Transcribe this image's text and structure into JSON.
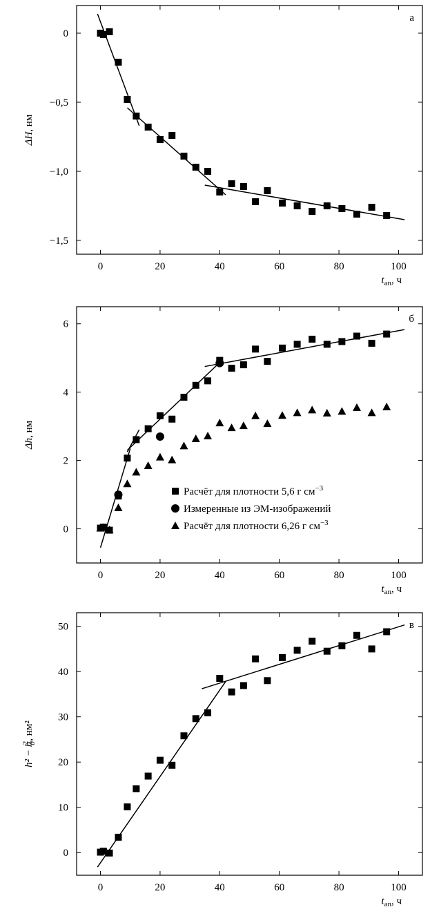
{
  "chart_data": [
    {
      "type": "scatter",
      "panel_letter": "а",
      "ylabel_symbol": "ΔH",
      "ylabel_unit": ", нм",
      "xlabel_symbol": "t",
      "xlabel_sub": "an",
      "xlabel_unit": ", ч",
      "xlim": [
        -8,
        108
      ],
      "ylim": [
        -1.6,
        0.2
      ],
      "xticks": [
        0,
        20,
        40,
        60,
        80,
        100
      ],
      "xtick_labels": [
        "0",
        "20",
        "40",
        "60",
        "80",
        "100"
      ],
      "yticks": [
        0,
        -0.5,
        -1.0,
        -1.5
      ],
      "ytick_labels": [
        "0",
        "−0,5",
        "−1,0",
        "−1,5"
      ],
      "series": [
        {
          "marker": "square",
          "x": [
            0,
            1,
            3,
            6,
            9,
            12,
            16,
            20,
            24,
            28,
            32,
            36,
            40,
            44,
            48,
            52,
            56,
            61,
            66,
            71,
            76,
            81,
            86,
            91,
            96
          ],
          "y": [
            0,
            -0.01,
            0.01,
            -0.21,
            -0.48,
            -0.6,
            -0.68,
            -0.77,
            -0.74,
            -0.89,
            -0.97,
            -1.0,
            -1.15,
            -1.09,
            -1.11,
            -1.22,
            -1.14,
            -1.23,
            -1.25,
            -1.29,
            -1.25,
            -1.27,
            -1.31,
            -1.26,
            -1.32
          ]
        }
      ],
      "fit_lines": [
        {
          "x": [
            -1,
            13
          ],
          "y": [
            0.14,
            -0.67
          ]
        },
        {
          "x": [
            9,
            42
          ],
          "y": [
            -0.54,
            -1.17
          ]
        },
        {
          "x": [
            35,
            102
          ],
          "y": [
            -1.1,
            -1.35
          ]
        }
      ]
    },
    {
      "type": "scatter",
      "panel_letter": "б",
      "ylabel_symbol": "Δh",
      "ylabel_unit": ", нм",
      "xlabel_symbol": "t",
      "xlabel_sub": "an",
      "xlabel_unit": ", ч",
      "xlim": [
        -8,
        108
      ],
      "ylim": [
        -1.0,
        6.5
      ],
      "xticks": [
        0,
        20,
        40,
        60,
        80,
        100
      ],
      "xtick_labels": [
        "0",
        "20",
        "40",
        "60",
        "80",
        "100"
      ],
      "yticks": [
        0,
        2,
        4,
        6
      ],
      "ytick_labels": [
        "0",
        "2",
        "4",
        "6"
      ],
      "series": [
        {
          "name": "Расчёт для плотности 5,6 г см",
          "name_sup": "−3",
          "marker": "square",
          "x": [
            0,
            1,
            3,
            6,
            9,
            12,
            16,
            20,
            24,
            28,
            32,
            36,
            40,
            44,
            48,
            52,
            56,
            61,
            66,
            71,
            76,
            81,
            86,
            91,
            96
          ],
          "y": [
            0.02,
            0.05,
            -0.04,
            0.96,
            2.07,
            2.61,
            2.93,
            3.31,
            3.21,
            3.85,
            4.2,
            4.33,
            4.93,
            4.7,
            4.8,
            5.26,
            4.9,
            5.29,
            5.4,
            5.55,
            5.4,
            5.48,
            5.64,
            5.43,
            5.7
          ]
        },
        {
          "name": "Измеренные из ЭМ-изображений",
          "marker": "circle",
          "x": [
            6,
            20,
            40
          ],
          "y": [
            1.0,
            2.7,
            4.85
          ]
        },
        {
          "name": "Расчёт для плотности 6,26 г см",
          "name_sup": "−3",
          "marker": "triangle",
          "x": [
            0,
            1,
            3,
            6,
            9,
            12,
            16,
            20,
            24,
            28,
            32,
            36,
            40,
            44,
            48,
            52,
            56,
            61,
            66,
            71,
            76,
            81,
            86,
            91,
            96
          ],
          "y": [
            0.02,
            0.04,
            -0.03,
            0.62,
            1.32,
            1.66,
            1.85,
            2.1,
            2.02,
            2.43,
            2.64,
            2.72,
            3.1,
            2.96,
            3.02,
            3.31,
            3.08,
            3.32,
            3.4,
            3.48,
            3.39,
            3.44,
            3.55,
            3.4,
            3.57
          ]
        }
      ],
      "fit_lines": [
        {
          "x": [
            0,
            10
          ],
          "y": [
            -0.55,
            2.35
          ]
        },
        {
          "x": [
            9,
            13
          ],
          "y": [
            2.25,
            2.9
          ]
        },
        {
          "x": [
            9,
            41
          ],
          "y": [
            2.3,
            4.95
          ]
        },
        {
          "x": [
            35,
            102
          ],
          "y": [
            4.75,
            5.83
          ]
        }
      ]
    },
    {
      "type": "scatter",
      "panel_letter": "в",
      "ylabel_main": "h² − h",
      "ylabel_sub": "0",
      "ylabel_sup": "2",
      "ylabel_unit": ", нм²",
      "xlabel_symbol": "t",
      "xlabel_sub": "an",
      "xlabel_unit": ", ч",
      "xlim": [
        -8,
        108
      ],
      "ylim": [
        -5,
        53
      ],
      "xticks": [
        0,
        20,
        40,
        60,
        80,
        100
      ],
      "xtick_labels": [
        "0",
        "20",
        "40",
        "60",
        "80",
        "100"
      ],
      "yticks": [
        0,
        10,
        20,
        30,
        40,
        50
      ],
      "ytick_labels": [
        "0",
        "10",
        "20",
        "30",
        "40",
        "50"
      ],
      "series": [
        {
          "marker": "square",
          "x": [
            0,
            1,
            3,
            6,
            9,
            12,
            16,
            20,
            24,
            28,
            32,
            36,
            40,
            44,
            48,
            52,
            56,
            61,
            66,
            71,
            76,
            81,
            86,
            91,
            96
          ],
          "y": [
            0.1,
            0.3,
            -0.1,
            3.4,
            10.1,
            14.1,
            16.9,
            20.4,
            19.3,
            25.8,
            29.6,
            30.9,
            38.5,
            35.5,
            36.9,
            42.8,
            38.0,
            43.1,
            44.7,
            46.7,
            44.5,
            45.7,
            48.0,
            45.0,
            48.8
          ]
        }
      ],
      "fit_lines": [
        {
          "x": [
            -1,
            42
          ],
          "y": [
            -3.2,
            37.8
          ]
        },
        {
          "x": [
            34,
            102
          ],
          "y": [
            36.2,
            50.3
          ]
        }
      ]
    }
  ]
}
